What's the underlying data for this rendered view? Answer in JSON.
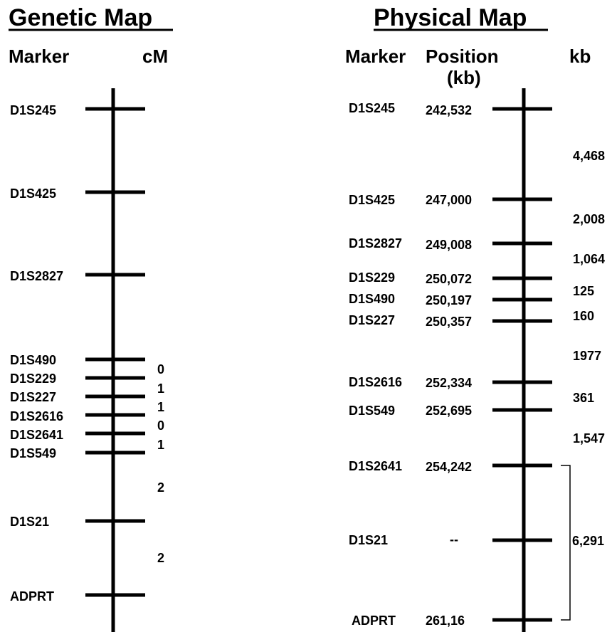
{
  "genetic": {
    "title": "Genetic Map",
    "col_marker": "Marker",
    "col_unit": "cM",
    "markers": [
      "D1S245",
      "D1S425",
      "D1S2827",
      "D1S490",
      "D1S229",
      "D1S227",
      "D1S2616",
      "D1S2641",
      "D1S549",
      "D1S21",
      "ADPRT"
    ],
    "intervals": [
      "0",
      "1",
      "1",
      "0",
      "1",
      "2",
      "2"
    ]
  },
  "physical": {
    "title": "Physical Map",
    "col_marker": "Marker",
    "col_position_1": "Position",
    "col_position_2": "(kb)",
    "col_unit": "kb",
    "markers": [
      {
        "name": "D1S245",
        "position": "242,532"
      },
      {
        "name": "D1S425",
        "position": "247,000"
      },
      {
        "name": "D1S2827",
        "position": "249,008"
      },
      {
        "name": "D1S229",
        "position": "250,072"
      },
      {
        "name": "D1S490",
        "position": "250,197"
      },
      {
        "name": "D1S227",
        "position": "250,357"
      },
      {
        "name": "D1S2616",
        "position": "252,334"
      },
      {
        "name": "D1S549",
        "position": "252,695"
      },
      {
        "name": "D1S2641",
        "position": "254,242"
      },
      {
        "name": "D1S21",
        "position": "--"
      },
      {
        "name": "ADPRT",
        "position": "261,16"
      }
    ],
    "intervals": [
      "4,468",
      "2,008",
      "1,064",
      "125",
      "160",
      "1977",
      "361",
      "1,547"
    ],
    "bracket_value": "6,291"
  }
}
